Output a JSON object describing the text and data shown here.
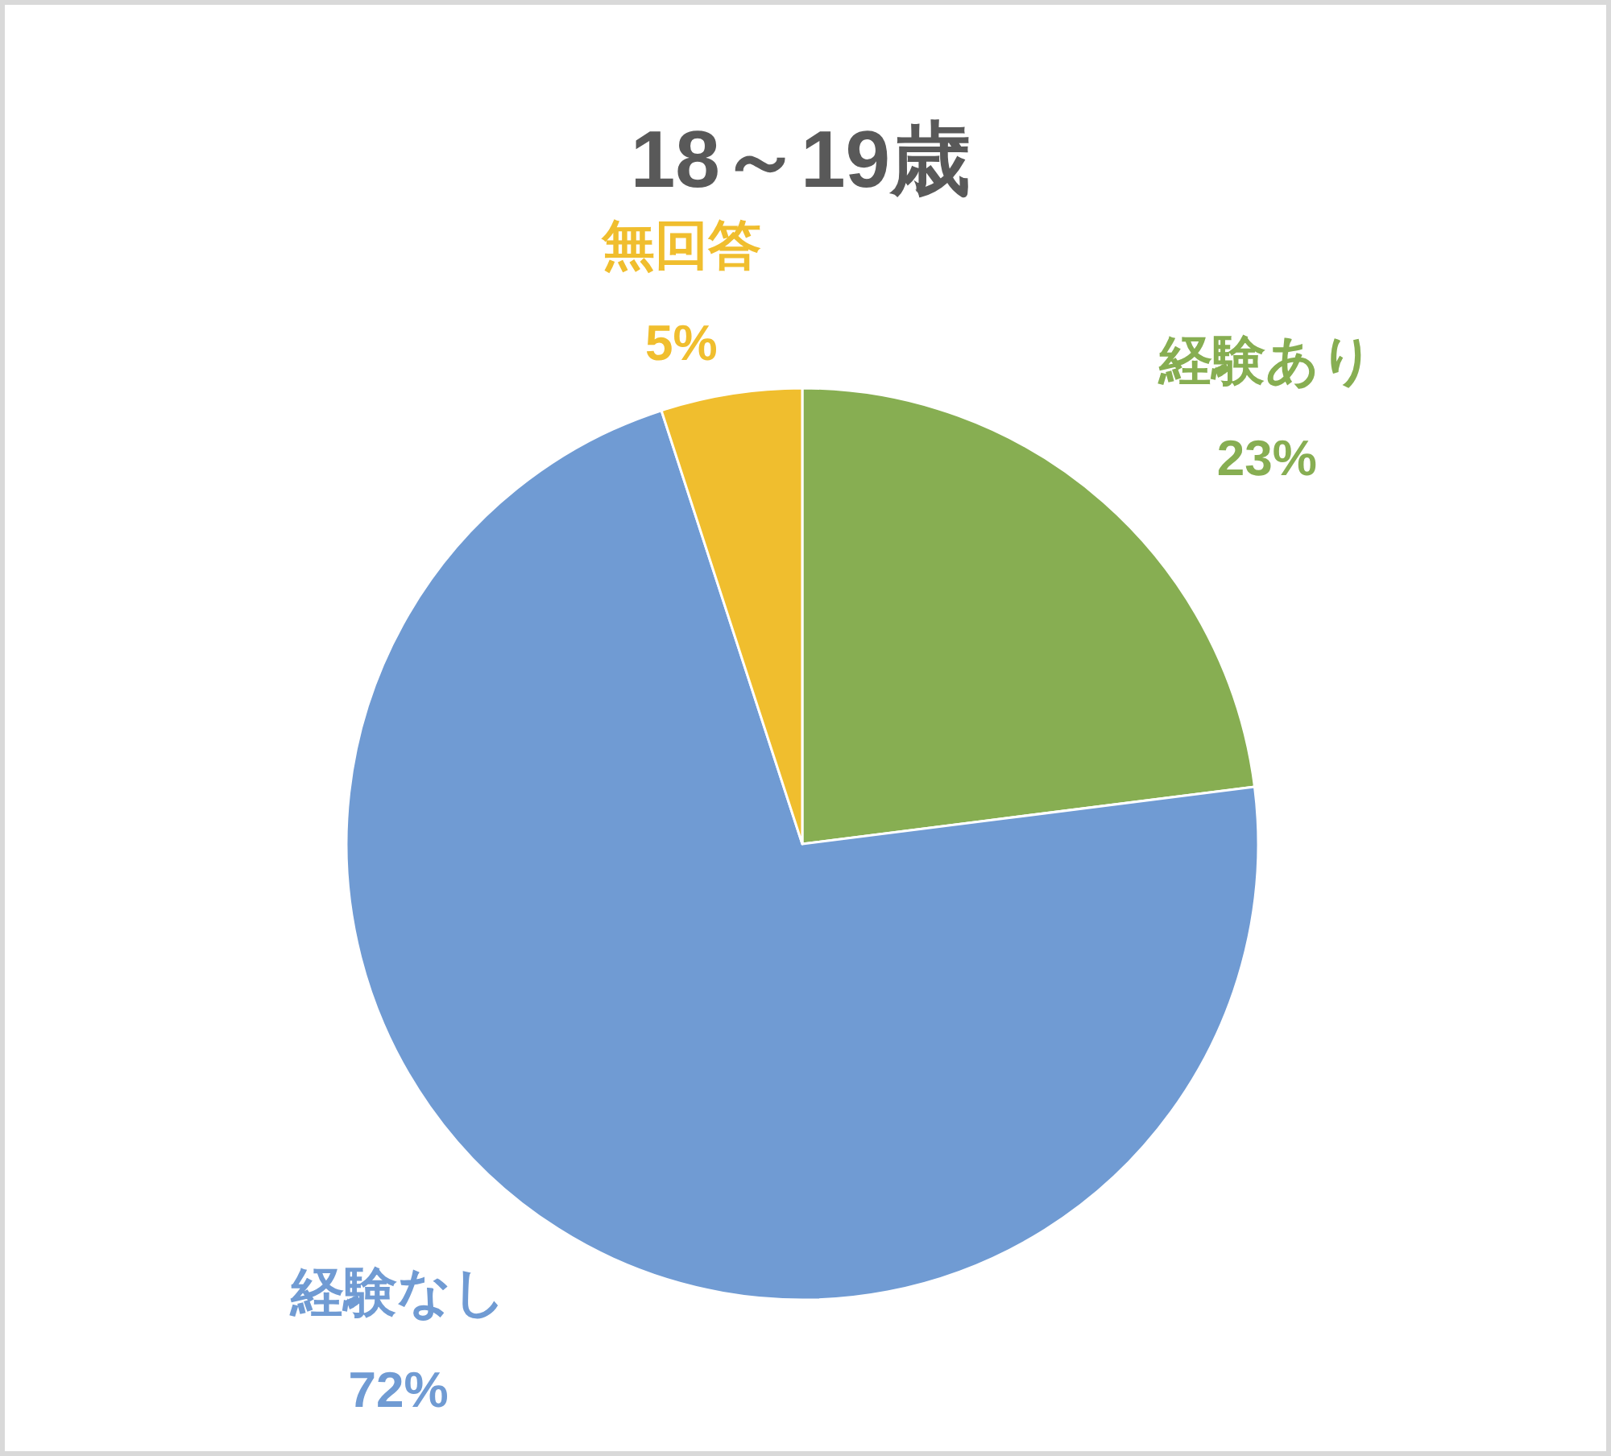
{
  "chart_data": {
    "type": "pie",
    "title": "18～19歳",
    "categories": [
      "経験あり",
      "経験なし",
      "無回答"
    ],
    "values": [
      23,
      72,
      5
    ],
    "value_labels": [
      "23%",
      "72%",
      "5%"
    ],
    "colors": [
      "#87ae52",
      "#709bd3",
      "#f0be2e"
    ],
    "legend": false
  }
}
